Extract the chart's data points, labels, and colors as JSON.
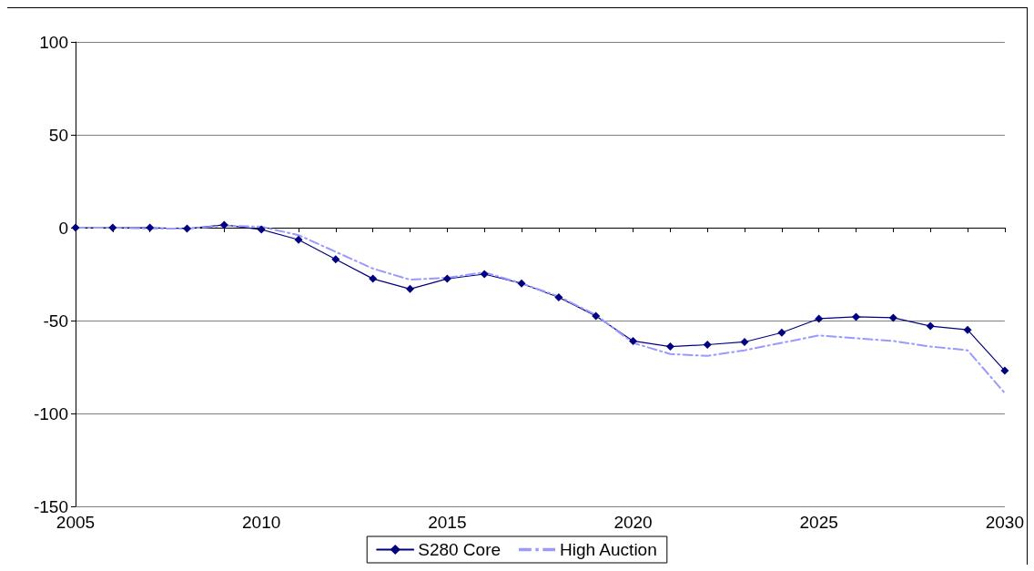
{
  "chart_data": {
    "type": "line",
    "categories": [
      "2005",
      null,
      null,
      null,
      null,
      "2010",
      null,
      null,
      null,
      null,
      "2015",
      null,
      null,
      null,
      null,
      "2020",
      null,
      null,
      null,
      null,
      "2025",
      null,
      null,
      null,
      null,
      "2030"
    ],
    "series": [
      {
        "name": "S280 Core",
        "color": "#000080",
        "marker": "diamond",
        "line_style": "solid",
        "values": [
          0,
          0,
          0,
          -0.5,
          1.5,
          -1,
          -6.5,
          -17,
          -27.5,
          -33,
          -27.5,
          -25,
          -30,
          -37.5,
          -47.5,
          -61,
          -64,
          -63,
          -61.5,
          -56.5,
          -49,
          -48,
          -48.5,
          -53,
          -55,
          -77
        ]
      },
      {
        "name": "High Auction",
        "color": "#9999ff",
        "marker": "none",
        "line_style": "dashed",
        "values": [
          0,
          0,
          -0.5,
          -0.5,
          1,
          0.5,
          -4,
          -13,
          -22,
          -28,
          -27,
          -24,
          -30,
          -37,
          -47,
          -62,
          -68,
          -69,
          -66,
          -62,
          -58,
          -59.5,
          -61,
          -64,
          -66,
          -89
        ]
      }
    ],
    "ylim": [
      -150,
      100
    ],
    "yticks": [
      -150,
      -100,
      -50,
      0,
      50,
      100
    ],
    "grid": "y",
    "legend": "bottom"
  }
}
